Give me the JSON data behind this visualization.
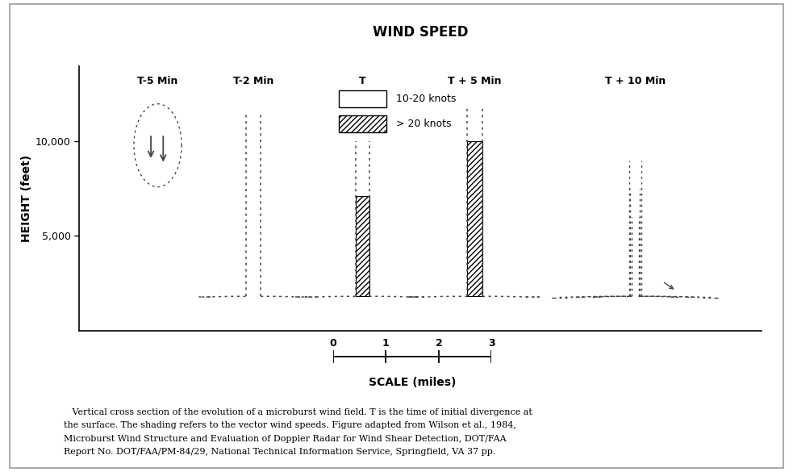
{
  "title": "WIND SPEED",
  "ylabel": "HEIGHT (feet)",
  "yticks": [
    5000,
    10000
  ],
  "ytick_labels": [
    "5,000",
    "10,000"
  ],
  "stage_labels": [
    "T-5 Min",
    "T-2 Min",
    "T",
    "T + 5 Min",
    "T + 10 Min"
  ],
  "legend_label1": "10-20 knots",
  "legend_label2": "> 20 knots",
  "scale_label": "SCALE (miles)",
  "caption_line1": "   Vertical cross section of the evolution of a microburst wind field. T is the time of initial divergence at",
  "caption_line2": "the surface. The shading refers to the vector wind speeds. Figure adapted from Wilson et al., 1984,",
  "caption_line3": "Microburst Wind Structure and Evaluation of Doppler Radar for Wind Shear Detection, DOT/FAA",
  "caption_line4": "Report No. DOT/FAA/PM-84/29, National Technical Information Service, Springfield, VA 37 pp.",
  "line_color": "#444444",
  "dot_seq": [
    2,
    3
  ]
}
